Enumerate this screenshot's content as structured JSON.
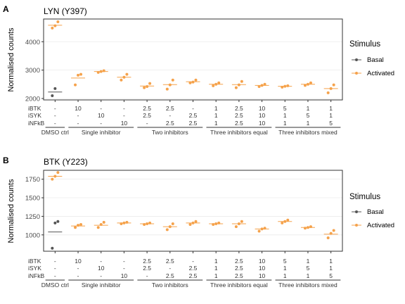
{
  "legend": {
    "title": "Stimulus",
    "items": [
      {
        "label": "Basal",
        "color": "#555555"
      },
      {
        "label": "Activated",
        "color": "#F5A24B"
      }
    ]
  },
  "chart_data": [
    {
      "type": "scatter",
      "tag": "A",
      "title": "LYN (Y397)",
      "ylabel": "Normalised counts",
      "ylim": [
        1950,
        4800
      ],
      "yticks": [
        2000,
        3000,
        4000
      ],
      "ytick_labels": [
        "2000",
        "3000",
        "4000"
      ],
      "conditions": [
        {
          "iBTK": "-",
          "iSYK": "-",
          "iNFkB": "-"
        },
        {
          "iBTK": "10",
          "iSYK": "-",
          "iNFkB": "-"
        },
        {
          "iBTK": "-",
          "iSYK": "10",
          "iNFkB": "-"
        },
        {
          "iBTK": "-",
          "iSYK": "-",
          "iNFkB": "10"
        },
        {
          "iBTK": "2.5",
          "iSYK": "2.5",
          "iNFkB": "-"
        },
        {
          "iBTK": "2.5",
          "iSYK": "-",
          "iNFkB": "2.5"
        },
        {
          "iBTK": "-",
          "iSYK": "2.5",
          "iNFkB": "2.5"
        },
        {
          "iBTK": "1",
          "iSYK": "1",
          "iNFkB": "1"
        },
        {
          "iBTK": "2.5",
          "iSYK": "2.5",
          "iNFkB": "2.5"
        },
        {
          "iBTK": "10",
          "iSYK": "10",
          "iNFkB": "10"
        },
        {
          "iBTK": "5",
          "iSYK": "1",
          "iNFkB": "1"
        },
        {
          "iBTK": "1",
          "iSYK": "5",
          "iNFkB": "1"
        },
        {
          "iBTK": "1",
          "iSYK": "1",
          "iNFkB": "5"
        }
      ],
      "series": [
        {
          "name": "Basal",
          "points": [
            {
              "x": 1,
              "ys": [
                2100,
                2350
              ]
            }
          ],
          "means": [
            {
              "x": 1,
              "y": 2230
            }
          ]
        },
        {
          "name": "Activated",
          "points": [
            {
              "x": 1,
              "ys": [
                4480,
                4560,
                4700
              ]
            },
            {
              "x": 2,
              "ys": [
                2480,
                2820,
                2850
              ]
            },
            {
              "x": 3,
              "ys": [
                2920,
                2950,
                2980
              ]
            },
            {
              "x": 4,
              "ys": [
                2650,
                2750,
                2850
              ]
            },
            {
              "x": 5,
              "ys": [
                2380,
                2420,
                2530
              ]
            },
            {
              "x": 6,
              "ys": [
                2330,
                2480,
                2650
              ]
            },
            {
              "x": 7,
              "ys": [
                2550,
                2580,
                2650
              ]
            },
            {
              "x": 8,
              "ys": [
                2450,
                2500,
                2550
              ]
            },
            {
              "x": 9,
              "ys": [
                2380,
                2480,
                2600
              ]
            },
            {
              "x": 10,
              "ys": [
                2420,
                2460,
                2500
              ]
            },
            {
              "x": 11,
              "ys": [
                2400,
                2430,
                2450
              ]
            },
            {
              "x": 12,
              "ys": [
                2460,
                2500,
                2550
              ]
            },
            {
              "x": 13,
              "ys": [
                2200,
                2350,
                2480
              ]
            }
          ],
          "means": [
            {
              "x": 1,
              "y": 4580
            },
            {
              "x": 2,
              "y": 2720
            },
            {
              "x": 3,
              "y": 2950
            },
            {
              "x": 4,
              "y": 2750
            },
            {
              "x": 5,
              "y": 2440
            },
            {
              "x": 6,
              "y": 2490
            },
            {
              "x": 7,
              "y": 2590
            },
            {
              "x": 8,
              "y": 2500
            },
            {
              "x": 9,
              "y": 2490
            },
            {
              "x": 10,
              "y": 2460
            },
            {
              "x": 11,
              "y": 2430
            },
            {
              "x": 12,
              "y": 2500
            },
            {
              "x": 13,
              "y": 2350
            }
          ]
        }
      ],
      "row_labels": [
        "iBTK",
        "iSYK",
        "iNFkB"
      ],
      "groups": [
        {
          "label": "DMSO ctrl",
          "from": 1,
          "to": 1
        },
        {
          "label": "Single inhibitor",
          "from": 2,
          "to": 4
        },
        {
          "label": "Two inhibitors",
          "from": 5,
          "to": 7
        },
        {
          "label": "Three inhibitors equal",
          "from": 8,
          "to": 10
        },
        {
          "label": "Three inhibitors mixed",
          "from": 11,
          "to": 13
        }
      ],
      "grid": true
    },
    {
      "type": "scatter",
      "tag": "B",
      "title": "BTK (Y223)",
      "ylabel": "Normalised counts",
      "ylim": [
        780,
        1870
      ],
      "yticks": [
        1000,
        1250,
        1500,
        1750
      ],
      "ytick_labels": [
        "1000",
        "1250",
        "1500",
        "1750"
      ],
      "conditions": [
        {
          "iBTK": "-",
          "iSYK": "-",
          "iNFkB": "-"
        },
        {
          "iBTK": "10",
          "iSYK": "-",
          "iNFkB": "-"
        },
        {
          "iBTK": "-",
          "iSYK": "10",
          "iNFkB": "-"
        },
        {
          "iBTK": "-",
          "iSYK": "-",
          "iNFkB": "10"
        },
        {
          "iBTK": "2.5",
          "iSYK": "2.5",
          "iNFkB": "-"
        },
        {
          "iBTK": "2.5",
          "iSYK": "-",
          "iNFkB": "2.5"
        },
        {
          "iBTK": "-",
          "iSYK": "2.5",
          "iNFkB": "2.5"
        },
        {
          "iBTK": "1",
          "iSYK": "1",
          "iNFkB": "1"
        },
        {
          "iBTK": "2.5",
          "iSYK": "2.5",
          "iNFkB": "2.5"
        },
        {
          "iBTK": "10",
          "iSYK": "10",
          "iNFkB": "10"
        },
        {
          "iBTK": "5",
          "iSYK": "1",
          "iNFkB": "1"
        },
        {
          "iBTK": "1",
          "iSYK": "5",
          "iNFkB": "1"
        },
        {
          "iBTK": "1",
          "iSYK": "1",
          "iNFkB": "5"
        }
      ],
      "series": [
        {
          "name": "Basal",
          "points": [
            {
              "x": 1,
              "ys": [
                820,
                1160,
                1180
              ]
            }
          ],
          "means": [
            {
              "x": 1,
              "y": 1040
            }
          ]
        },
        {
          "name": "Activated",
          "points": [
            {
              "x": 1,
              "ys": [
                1750,
                1790,
                1840
              ]
            },
            {
              "x": 2,
              "ys": [
                1100,
                1130,
                1140
              ]
            },
            {
              "x": 3,
              "ys": [
                1100,
                1140,
                1170
              ]
            },
            {
              "x": 4,
              "ys": [
                1150,
                1160,
                1170
              ]
            },
            {
              "x": 5,
              "ys": [
                1140,
                1150,
                1160
              ]
            },
            {
              "x": 6,
              "ys": [
                1070,
                1110,
                1150
              ]
            },
            {
              "x": 7,
              "ys": [
                1140,
                1160,
                1180
              ]
            },
            {
              "x": 8,
              "ys": [
                1140,
                1150,
                1160
              ]
            },
            {
              "x": 9,
              "ys": [
                1110,
                1150,
                1180
              ]
            },
            {
              "x": 10,
              "ys": [
                1050,
                1080,
                1090
              ]
            },
            {
              "x": 11,
              "ys": [
                1160,
                1180,
                1200
              ]
            },
            {
              "x": 12,
              "ys": [
                1090,
                1100,
                1110
              ]
            },
            {
              "x": 13,
              "ys": [
                960,
                1020,
                1060
              ]
            }
          ],
          "means": [
            {
              "x": 1,
              "y": 1790
            },
            {
              "x": 2,
              "y": 1120
            },
            {
              "x": 3,
              "y": 1130
            },
            {
              "x": 4,
              "y": 1160
            },
            {
              "x": 5,
              "y": 1150
            },
            {
              "x": 6,
              "y": 1110
            },
            {
              "x": 7,
              "y": 1160
            },
            {
              "x": 8,
              "y": 1150
            },
            {
              "x": 9,
              "y": 1150
            },
            {
              "x": 10,
              "y": 1080
            },
            {
              "x": 11,
              "y": 1180
            },
            {
              "x": 12,
              "y": 1100
            },
            {
              "x": 13,
              "y": 1010
            }
          ]
        }
      ],
      "row_labels": [
        "iBTK",
        "iSYK",
        "iNFkB"
      ],
      "groups": [
        {
          "label": "DMSO ctrl",
          "from": 1,
          "to": 1
        },
        {
          "label": "Single inhibitor",
          "from": 2,
          "to": 4
        },
        {
          "label": "Two inhibitors",
          "from": 5,
          "to": 7
        },
        {
          "label": "Three inhibitors equal",
          "from": 8,
          "to": 10
        },
        {
          "label": "Three inhibitors mixed",
          "from": 11,
          "to": 13
        }
      ],
      "grid": true
    }
  ]
}
